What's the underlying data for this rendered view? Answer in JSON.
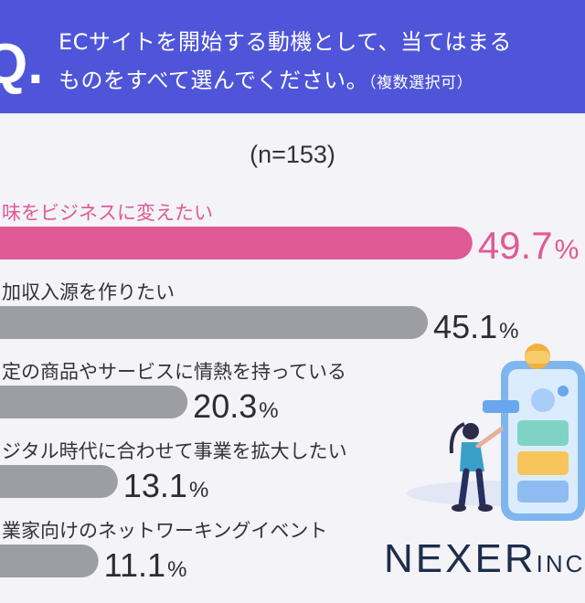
{
  "question": {
    "mark": "Q.",
    "line1": "ECサイトを開始する動機として、当てはまる",
    "line2": "ものをすべて選んでください。",
    "note": "（複数選択可）"
  },
  "sample_size": "(n=153)",
  "chart_data": {
    "type": "bar",
    "orientation": "horizontal",
    "categories": [
      "味をビジネスに変えたい",
      "加収入源を作りたい",
      "定の商品やサービスに情熱を持っている",
      "ジタル時代に合わせて事業を拡大したい",
      "業家向けのネットワーキングイベント"
    ],
    "values": [
      49.7,
      45.1,
      20.3,
      13.1,
      11.1
    ],
    "value_labels": [
      "49.7",
      "45.1",
      "20.3",
      "13.1",
      "11.1"
    ],
    "unit": "%",
    "highlight_index": 0,
    "colors": {
      "highlight": "#e05a96",
      "default": "#9d9da4"
    }
  },
  "brand": {
    "name_big": "NEXER",
    "name_small": "INC"
  }
}
